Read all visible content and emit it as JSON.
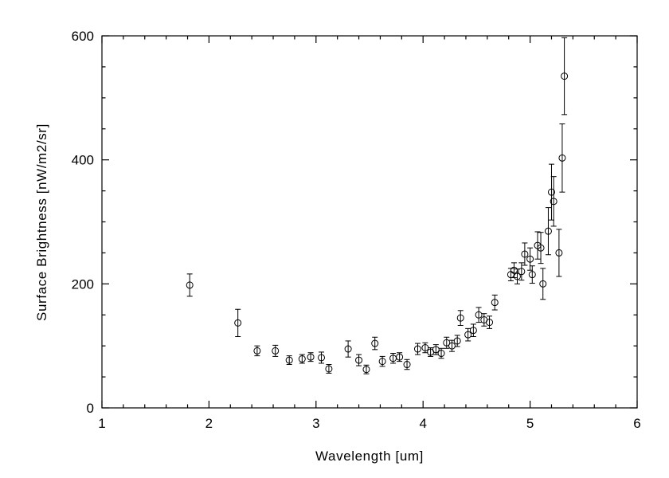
{
  "chart_data": {
    "type": "scatter",
    "title": "",
    "xlabel": "Wavelength [um]",
    "ylabel": "Surface Brightness [nW/m2/sr]",
    "xlim": [
      1,
      6
    ],
    "ylim": [
      0,
      600
    ],
    "xticks": [
      1,
      2,
      3,
      4,
      5,
      6
    ],
    "yticks": [
      0,
      200,
      400,
      600
    ],
    "x_major_step": 1,
    "x_minor_step": 0.2,
    "y_major_step": 200,
    "y_minor_step": 50,
    "grid": false,
    "legend": null,
    "marker": "open-circle",
    "error_bars": "vertical-with-caps",
    "color": "#000000",
    "background": "#ffffff",
    "point_format": [
      "wavelength_um",
      "brightness_nW_m2_sr",
      "error"
    ],
    "points": [
      [
        1.82,
        198,
        18
      ],
      [
        2.27,
        137,
        22
      ],
      [
        2.45,
        92,
        8
      ],
      [
        2.62,
        92,
        9
      ],
      [
        2.75,
        77,
        7
      ],
      [
        2.87,
        79,
        7
      ],
      [
        2.95,
        82,
        7
      ],
      [
        3.05,
        81,
        9
      ],
      [
        3.12,
        63,
        7
      ],
      [
        3.3,
        95,
        13
      ],
      [
        3.4,
        77,
        9
      ],
      [
        3.47,
        62,
        7
      ],
      [
        3.55,
        104,
        10
      ],
      [
        3.62,
        75,
        8
      ],
      [
        3.72,
        80,
        8
      ],
      [
        3.78,
        82,
        7
      ],
      [
        3.85,
        70,
        8
      ],
      [
        3.95,
        95,
        9
      ],
      [
        4.02,
        97,
        8
      ],
      [
        4.07,
        90,
        7
      ],
      [
        4.12,
        94,
        8
      ],
      [
        4.17,
        88,
        8
      ],
      [
        4.22,
        105,
        9
      ],
      [
        4.27,
        100,
        9
      ],
      [
        4.32,
        108,
        9
      ],
      [
        4.35,
        145,
        12
      ],
      [
        4.42,
        118,
        10
      ],
      [
        4.47,
        125,
        10
      ],
      [
        4.52,
        150,
        12
      ],
      [
        4.57,
        142,
        10
      ],
      [
        4.62,
        138,
        10
      ],
      [
        4.67,
        170,
        12
      ],
      [
        4.82,
        215,
        10
      ],
      [
        4.85,
        222,
        12
      ],
      [
        4.88,
        212,
        12
      ],
      [
        4.92,
        220,
        14
      ],
      [
        4.95,
        248,
        18
      ],
      [
        5.0,
        240,
        18
      ],
      [
        5.02,
        215,
        14
      ],
      [
        5.07,
        262,
        22
      ],
      [
        5.1,
        258,
        25
      ],
      [
        5.12,
        200,
        25
      ],
      [
        5.17,
        285,
        38
      ],
      [
        5.2,
        348,
        45
      ],
      [
        5.22,
        333,
        40
      ],
      [
        5.27,
        250,
        38
      ],
      [
        5.3,
        403,
        55
      ],
      [
        5.32,
        535,
        62
      ]
    ]
  }
}
